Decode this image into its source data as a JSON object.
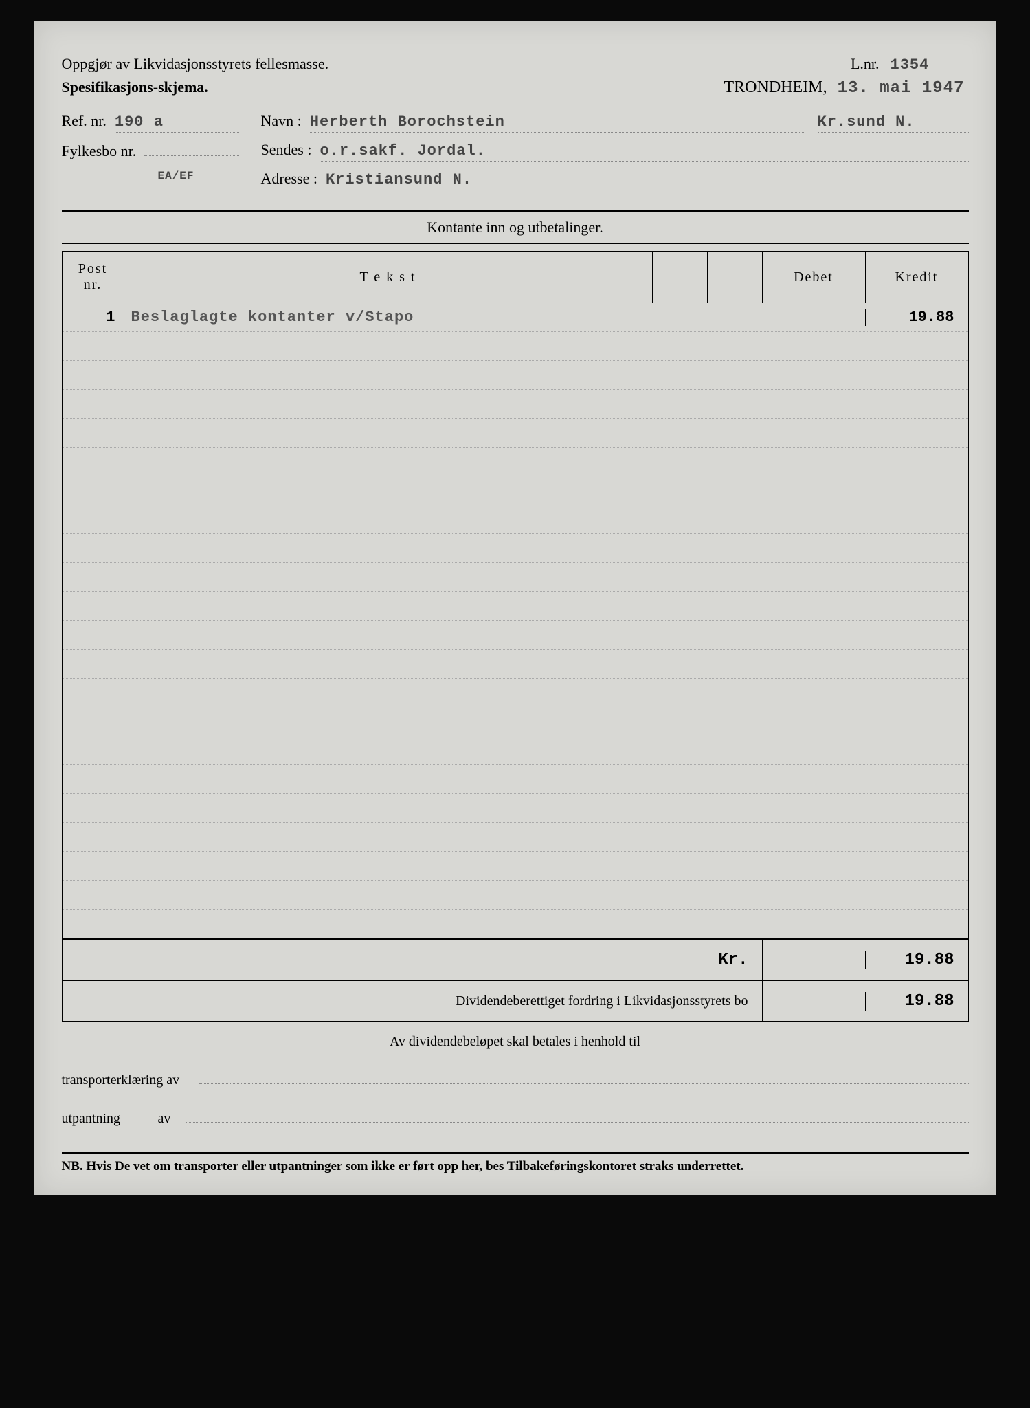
{
  "header": {
    "title": "Oppgjør av Likvidasjonsstyrets fellesmasse.",
    "subtitle": "Spesifikasjons-skjema.",
    "lnr_label": "L.nr.",
    "lnr_value": "1354",
    "city": "TRONDHEIM,",
    "date": "13. mai 1947"
  },
  "fields": {
    "ref_label": "Ref. nr.",
    "ref_value": "190 a",
    "navn_label": "Navn :",
    "navn_value": "Herberth Borochstein",
    "navn_extra": "Kr.sund N.",
    "fylkesbo_label": "Fylkesbo nr.",
    "fylkesbo_value": "",
    "sendes_label": "Sendes :",
    "sendes_value": "o.r.sakf. Jordal.",
    "adresse_label": "Adresse :",
    "adresse_value": "Kristiansund N.",
    "code": "EA/EF"
  },
  "section_title": "Kontante inn og utbetalinger.",
  "columns": {
    "post": "Post nr.",
    "tekst": "T e k s t",
    "debet": "Debet",
    "kredit": "Kredit"
  },
  "entries": [
    {
      "post": "1",
      "tekst": "Beslaglagte kontanter v/Stapo",
      "debet": "",
      "kredit": "19.88"
    }
  ],
  "totals": {
    "kr_label": "Kr.",
    "kr_value": "19.88",
    "dividend_label": "Dividendeberettiget fordring i Likvidasjonsstyrets bo",
    "dividend_value": "19.88"
  },
  "footer": {
    "dividend_text": "Av dividendebeløpet skal betales i henhold til",
    "transport_label": "transporterklæring av",
    "utpantning_label": "utpantning",
    "av_label": "av",
    "nb": "NB. Hvis De vet om transporter eller utpantninger som ikke er ført opp her, bes Tilbakeføringskontoret straks underrettet."
  },
  "blank_rows": 21
}
